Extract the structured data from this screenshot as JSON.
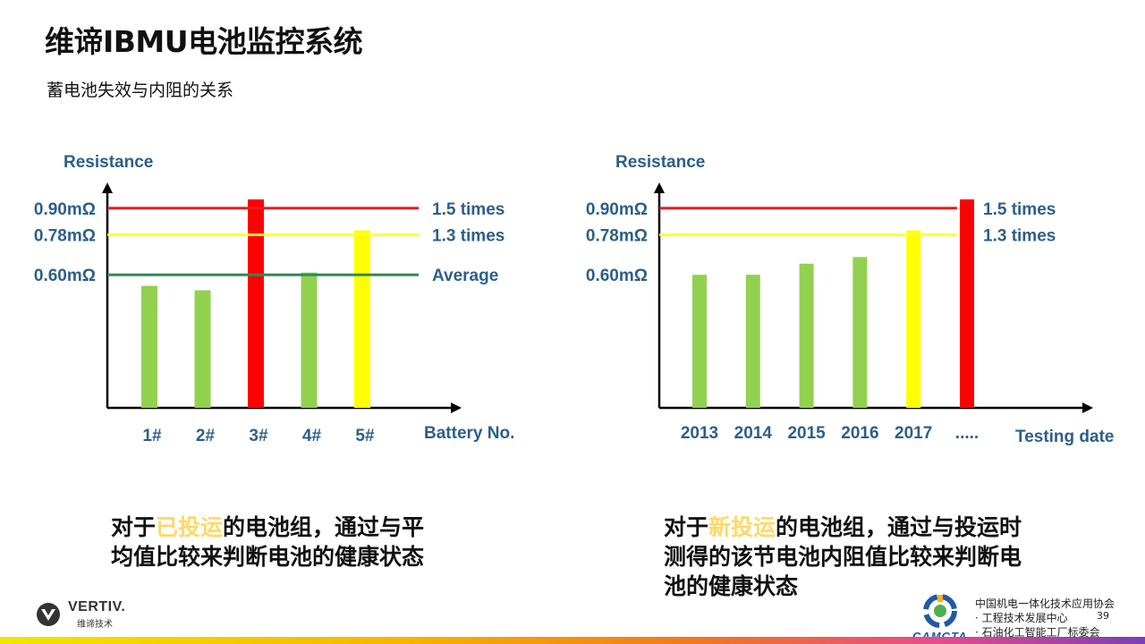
{
  "title": "维谛IBMU电池监控系统",
  "subtitle": "蓄电池失效与内阻的关系",
  "chart_data": [
    {
      "type": "bar",
      "ylabel": "Resistance",
      "xlabel": "Battery No.",
      "categories": [
        "1#",
        "2#",
        "3#",
        "4#",
        "5#"
      ],
      "values": [
        0.55,
        0.53,
        0.94,
        0.61,
        0.8
      ],
      "colors": [
        "#92d050",
        "#92d050",
        "#ff0000",
        "#92d050",
        "#ffff00"
      ],
      "y_tick_labels": [
        {
          "value": 0.9,
          "label": "0.90mΩ"
        },
        {
          "value": 0.78,
          "label": "0.78mΩ"
        },
        {
          "value": 0.6,
          "label": "0.60mΩ"
        }
      ],
      "reference_lines": [
        {
          "value": 0.9,
          "label": "1.5 times",
          "color": "#e02020"
        },
        {
          "value": 0.78,
          "label": "1.3 times",
          "color": "#ffff33"
        },
        {
          "value": 0.6,
          "label": "Average",
          "color": "#2e8b57"
        }
      ],
      "ylim": [
        0,
        1.0
      ]
    },
    {
      "type": "bar",
      "ylabel": "Resistance",
      "xlabel": "Testing date",
      "categories": [
        "2013",
        "2014",
        "2015",
        "2016",
        "2017",
        "....."
      ],
      "values": [
        0.6,
        0.6,
        0.65,
        0.68,
        0.8,
        0.94
      ],
      "colors": [
        "#92d050",
        "#92d050",
        "#92d050",
        "#92d050",
        "#ffff00",
        "#ff0000"
      ],
      "y_tick_labels": [
        {
          "value": 0.9,
          "label": "0.90mΩ"
        },
        {
          "value": 0.78,
          "label": "0.78mΩ"
        },
        {
          "value": 0.6,
          "label": "0.60mΩ"
        }
      ],
      "reference_lines": [
        {
          "value": 0.9,
          "label": "1.5 times",
          "color": "#e02020"
        },
        {
          "value": 0.78,
          "label": "1.3 times",
          "color": "#ffff33"
        }
      ],
      "ylim": [
        0,
        1.0
      ]
    }
  ],
  "captions": {
    "left": {
      "line1_pre": "对于",
      "line1_highlight": "已投运",
      "line1_post": "的电池组，通过与平",
      "line2": "均值比较来判断电池的健康状态"
    },
    "right": {
      "line1_pre": "对于",
      "line1_highlight": "新投运",
      "line1_post": "的电池组，通过与投运时",
      "line2": "测得的该节电池内阻值比较来判断电",
      "line3": "池的健康状态"
    }
  },
  "footer": {
    "brand": "VERTIV.",
    "brand_sub": "维谛技术",
    "org_logo_text": "CAMCTA",
    "org_line1": "中国机电一体化技术应用协会",
    "org_line2": "· 工程技术发展中心",
    "org_line3": "· 石油化工智能工厂标委会",
    "page_number": "39"
  },
  "colors": {
    "axis_text": "#2c5f8a",
    "highlight": "#ffd966",
    "bar_green": "#92d050",
    "bar_red": "#ff0000",
    "bar_yellow": "#ffff00"
  }
}
